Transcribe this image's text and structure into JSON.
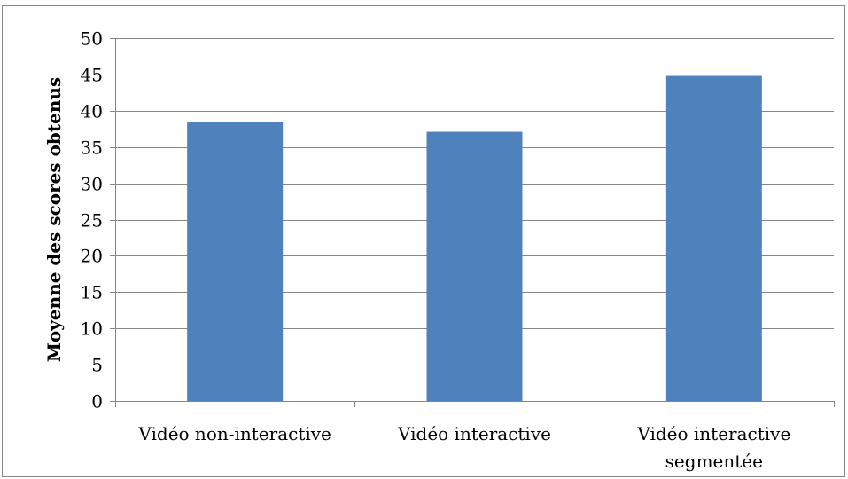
{
  "chart_data": {
    "type": "bar",
    "categories": [
      [
        "Vidéo non-interactive"
      ],
      [
        "Vidéo interactive"
      ],
      [
        "Vidéo interactive",
        "segmentée"
      ]
    ],
    "values": [
      38.4,
      37.1,
      44.8
    ],
    "title": "",
    "xlabel": "",
    "ylabel": "Moyenne des scores obtenus",
    "ylim": [
      0,
      50
    ],
    "yticks": [
      0,
      5,
      10,
      15,
      20,
      25,
      30,
      35,
      40,
      45,
      50
    ],
    "grid": true,
    "legend": "none",
    "colors": {
      "bar": "#4F81BD",
      "bar_edge": "#3C6A9F",
      "grid": "#868686",
      "axis": "#868686",
      "text": "#000000"
    }
  }
}
